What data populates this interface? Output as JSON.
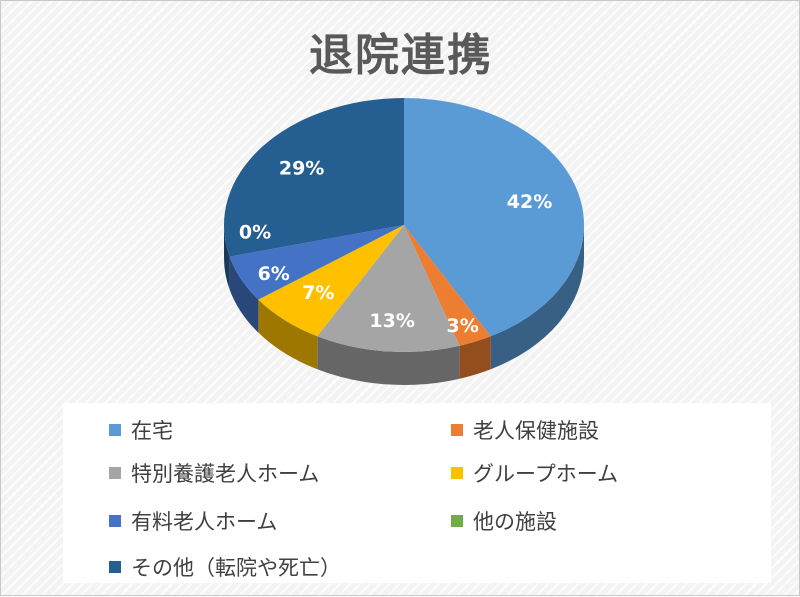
{
  "chart_data": {
    "type": "pie",
    "title": "退院連携",
    "categories": [
      "在宅",
      "老人保健施設",
      "特別養護老人ホーム",
      "グループホーム",
      "有料老人ホーム",
      "他の施設",
      "その他（転院や死亡）"
    ],
    "values": [
      42,
      3,
      13,
      7,
      6,
      0,
      29
    ],
    "data_labels": [
      "42%",
      "3%",
      "13%",
      "7%",
      "6%",
      "0%",
      "29%"
    ],
    "colors": [
      "#5b9bd5",
      "#ed7d31",
      "#a5a5a5",
      "#ffc000",
      "#4472c4",
      "#70ad47",
      "#255e91"
    ],
    "legend_position": "bottom",
    "style": "3d"
  }
}
